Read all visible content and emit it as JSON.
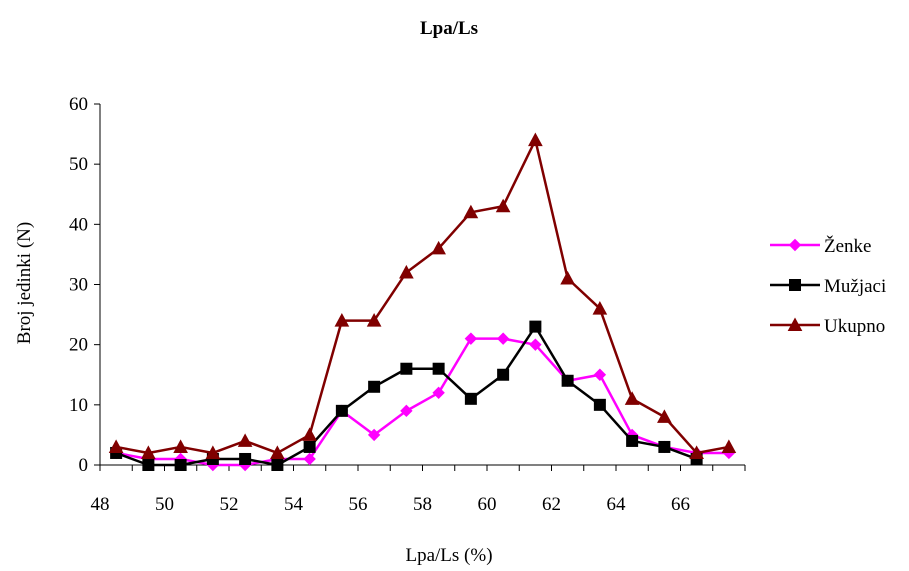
{
  "chart_data": {
    "type": "line",
    "title": "Lpa/Ls",
    "xlabel": "Lpa/Ls (%)",
    "ylabel": "Broj jedinki (N)",
    "x": [
      48.5,
      49.5,
      50.5,
      51.5,
      52.5,
      53.5,
      54.5,
      55.5,
      56.5,
      57.5,
      58.5,
      59.5,
      60.5,
      61.5,
      62.5,
      63.5,
      64.5,
      65.5,
      66.5,
      67.5
    ],
    "xticks": [
      "48",
      "50",
      "52",
      "54",
      "56",
      "58",
      "60",
      "62",
      "64",
      "66"
    ],
    "xlim": [
      48,
      68
    ],
    "ylim": [
      0,
      60
    ],
    "yticks": [
      "0",
      "10",
      "20",
      "30",
      "40",
      "50",
      "60"
    ],
    "legend_position": "right",
    "grid": false,
    "series": [
      {
        "name": "Ženke",
        "color": "#ff00ff",
        "marker": "diamond",
        "values": [
          2,
          1,
          1,
          0,
          0,
          1,
          1,
          9,
          5,
          9,
          12,
          21,
          21,
          20,
          14,
          15,
          5,
          3,
          2,
          2
        ]
      },
      {
        "name": "Mužjaci",
        "color": "#000000",
        "marker": "square",
        "values": [
          2,
          0,
          0,
          1,
          1,
          0,
          3,
          9,
          13,
          16,
          16,
          11,
          15,
          23,
          14,
          10,
          4,
          3,
          1,
          null
        ]
      },
      {
        "name": "Ukupno",
        "color": "#800000",
        "marker": "triangle",
        "values": [
          3,
          2,
          3,
          2,
          4,
          2,
          5,
          24,
          24,
          32,
          36,
          42,
          43,
          54,
          31,
          26,
          11,
          8,
          2,
          3
        ]
      }
    ]
  }
}
